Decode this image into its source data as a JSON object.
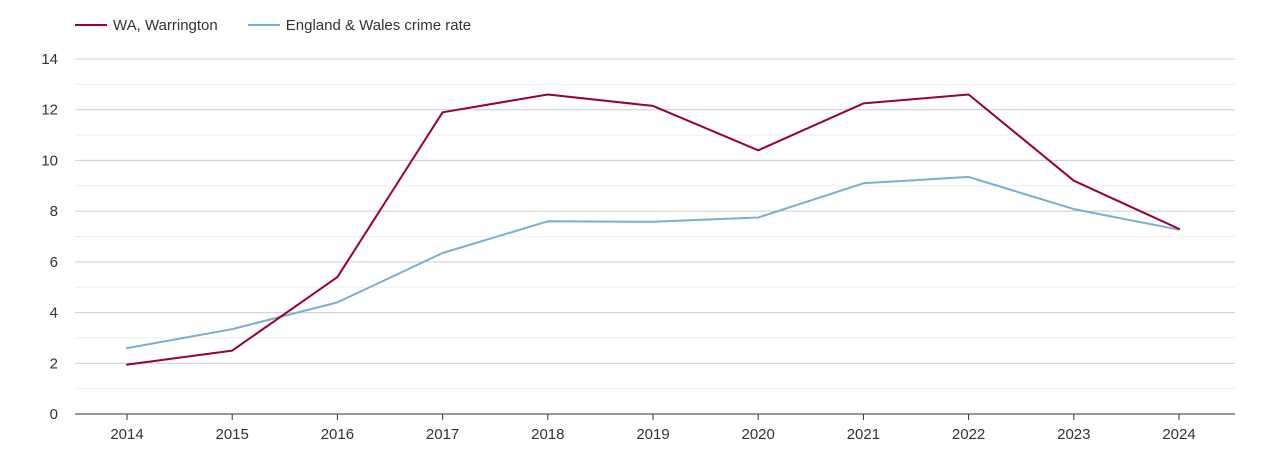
{
  "chart_data": {
    "type": "line",
    "title": "",
    "xlabel": "",
    "ylabel": "",
    "x": [
      "2014",
      "2015",
      "2016",
      "2017",
      "2018",
      "2019",
      "2020",
      "2021",
      "2022",
      "2023",
      "2024"
    ],
    "ylim": [
      0,
      14
    ],
    "y_ticks": [
      0,
      2,
      4,
      6,
      8,
      10,
      12,
      14
    ],
    "grid": true,
    "legend_position": "top-left",
    "series": [
      {
        "name": "WA, Warrington",
        "color": "#990033",
        "values": [
          1.95,
          2.5,
          5.4,
          11.9,
          12.6,
          12.15,
          10.4,
          12.25,
          12.6,
          9.2,
          7.3
        ]
      },
      {
        "name": "England & Wales crime rate",
        "color": "#7aafd2",
        "values": [
          2.6,
          3.35,
          4.4,
          6.35,
          7.6,
          7.58,
          7.75,
          9.1,
          9.35,
          8.08,
          7.27
        ]
      }
    ]
  }
}
